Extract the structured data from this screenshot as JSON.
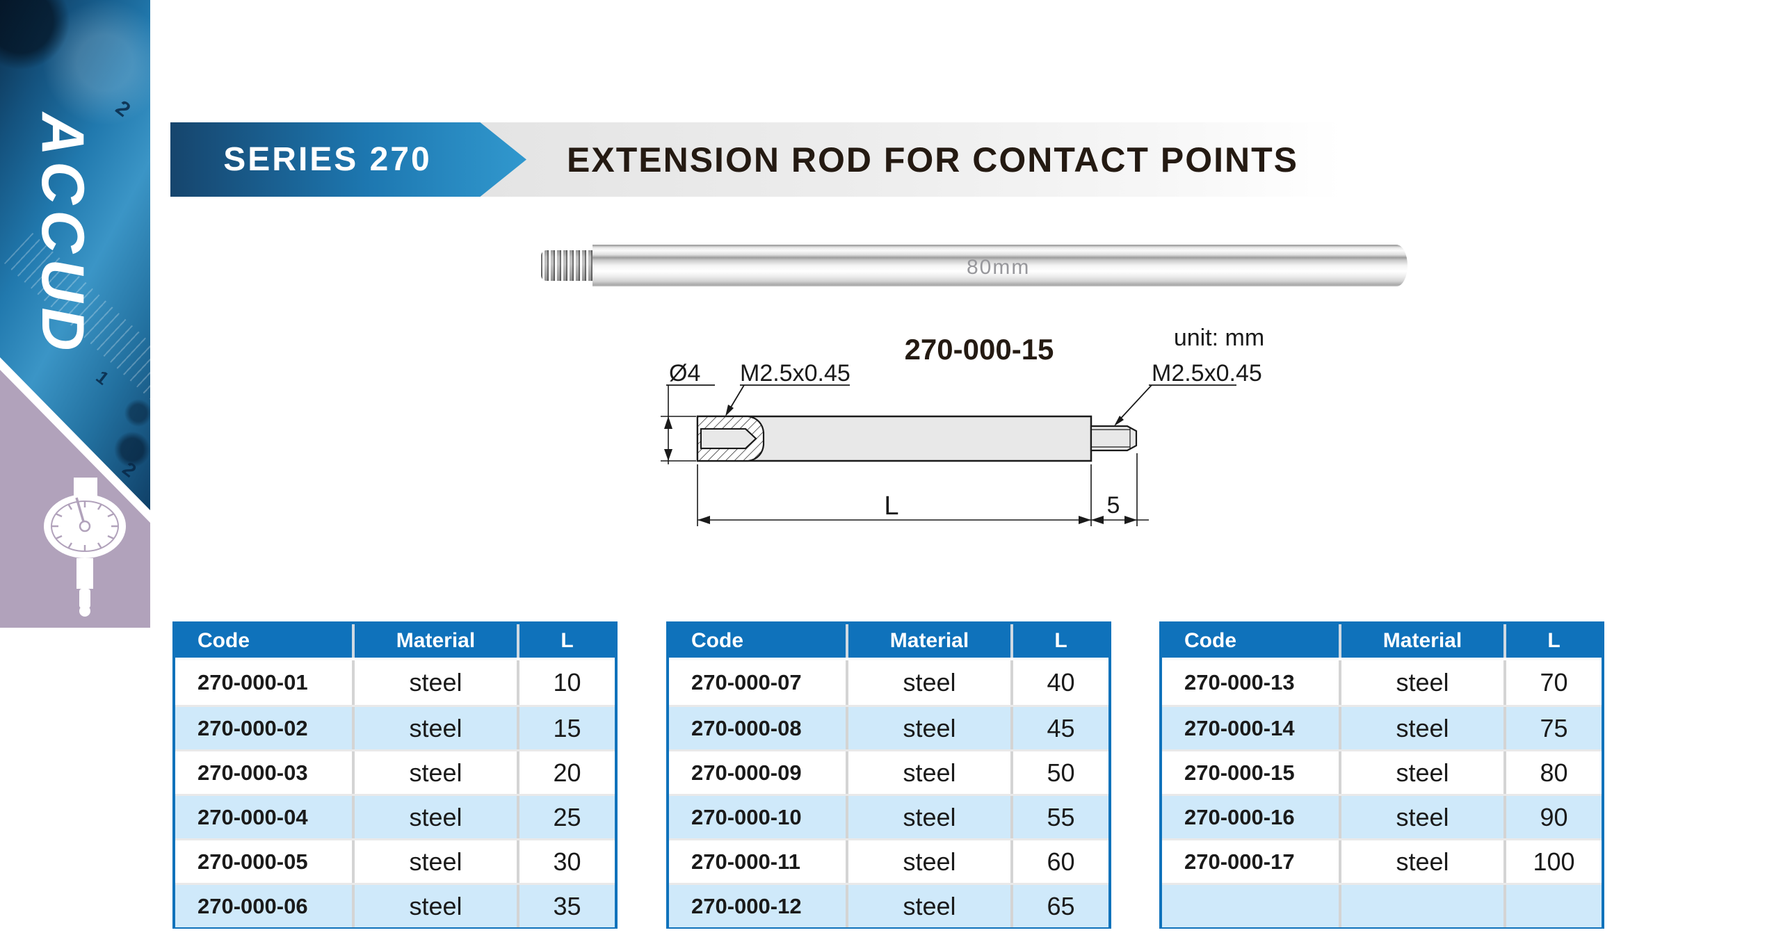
{
  "brand": {
    "name": "ACCUD"
  },
  "sidebar": {
    "photo_digits": [
      "2",
      "1",
      "2"
    ]
  },
  "header": {
    "series": "SERIES 270",
    "title": "EXTENSION ROD FOR CONTACT POINTS"
  },
  "photo": {
    "etch": "80mm"
  },
  "drawing": {
    "part_code": "270-000-15",
    "unit": "unit: mm",
    "dia": "Ø4",
    "thread_left": "M2.5x0.45",
    "thread_right": "M2.5x0.45",
    "dim_length": "L",
    "dim_tip": "5"
  },
  "tables": {
    "headers": [
      "Code",
      "Material",
      "L"
    ],
    "groups": [
      {
        "rows": [
          [
            "270-000-01",
            "steel",
            "10"
          ],
          [
            "270-000-02",
            "steel",
            "15"
          ],
          [
            "270-000-03",
            "steel",
            "20"
          ],
          [
            "270-000-04",
            "steel",
            "25"
          ],
          [
            "270-000-05",
            "steel",
            "30"
          ],
          [
            "270-000-06",
            "steel",
            "35"
          ]
        ]
      },
      {
        "rows": [
          [
            "270-000-07",
            "steel",
            "40"
          ],
          [
            "270-000-08",
            "steel",
            "45"
          ],
          [
            "270-000-09",
            "steel",
            "50"
          ],
          [
            "270-000-10",
            "steel",
            "55"
          ],
          [
            "270-000-11",
            "steel",
            "60"
          ],
          [
            "270-000-12",
            "steel",
            "65"
          ]
        ]
      },
      {
        "rows": [
          [
            "270-000-13",
            "steel",
            "70"
          ],
          [
            "270-000-14",
            "steel",
            "75"
          ],
          [
            "270-000-15",
            "steel",
            "80"
          ],
          [
            "270-000-16",
            "steel",
            "90"
          ],
          [
            "270-000-17",
            "steel",
            "100"
          ],
          [
            "",
            "",
            ""
          ]
        ]
      }
    ]
  },
  "colors": {
    "accent_blue": "#0f72bb",
    "row_alt": "#cfe9fa",
    "banner_from": "#16456d",
    "banner_mid": "#1d77b0",
    "banner_to": "#3198ce",
    "title_ink": "#241a12",
    "purple": "#b1a2bb",
    "cell_ink": "#1a1a1a"
  }
}
